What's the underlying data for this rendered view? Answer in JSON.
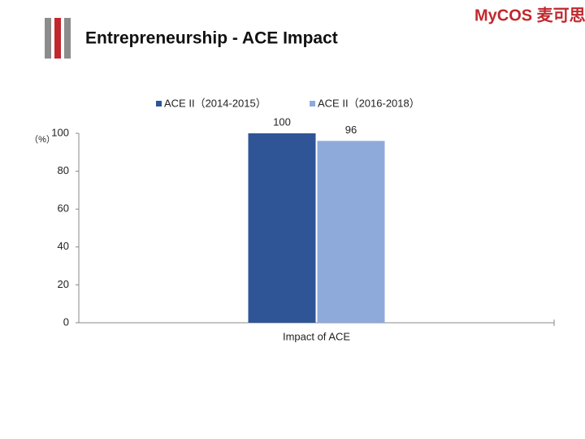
{
  "logo": "MyCOS 麦可思",
  "chart_data": {
    "type": "bar",
    "title": "Entrepreneurship - ACE Impact",
    "y_label": "（%）",
    "categories": [
      "Impact of ACE"
    ],
    "series": [
      {
        "name": "ACE II（2014-2015）",
        "color": "#2f5597",
        "values": [
          100
        ]
      },
      {
        "name": "ACE II（2016-2018）",
        "color": "#8eaadb",
        "values": [
          96
        ]
      }
    ],
    "ylim": [
      0,
      100
    ],
    "yticks": [
      0,
      20,
      40,
      60,
      80,
      100
    ],
    "grid": false,
    "legend": "top"
  }
}
